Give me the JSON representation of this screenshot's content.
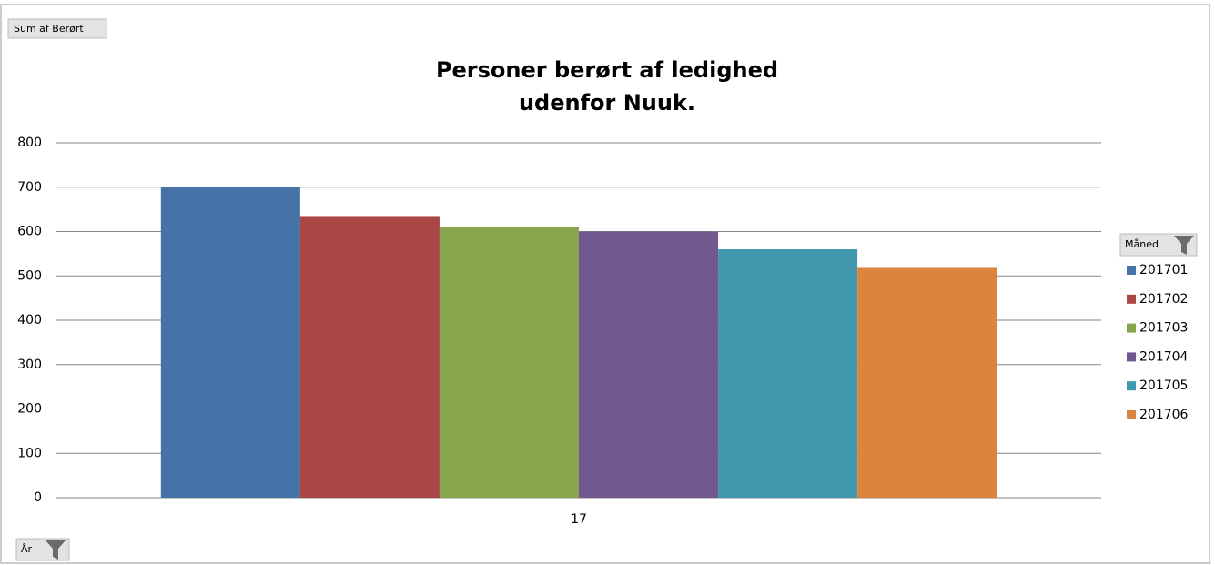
{
  "chart_data": {
    "type": "bar",
    "title": [
      "Personer berørt af ledighed",
      "udenfor Nuuk."
    ],
    "categories": [
      "17"
    ],
    "series": [
      {
        "name": "201701",
        "color": "#4572a7",
        "values": [
          700
        ]
      },
      {
        "name": "201702",
        "color": "#aa4643",
        "values": [
          635
        ]
      },
      {
        "name": "201703",
        "color": "#89a54e",
        "values": [
          610
        ]
      },
      {
        "name": "201704",
        "color": "#71588f",
        "values": [
          600
        ]
      },
      {
        "name": "201705",
        "color": "#4198af",
        "values": [
          560
        ]
      },
      {
        "name": "201706",
        "color": "#db843d",
        "values": [
          518
        ]
      }
    ],
    "ylim": [
      0,
      800
    ],
    "yticks": [
      0,
      100,
      200,
      300,
      400,
      500,
      600,
      700,
      800
    ],
    "grid": true,
    "legend_position": "right",
    "field_buttons": {
      "value": "Sum af Berørt",
      "legend": "Måned",
      "axis": "År"
    }
  }
}
